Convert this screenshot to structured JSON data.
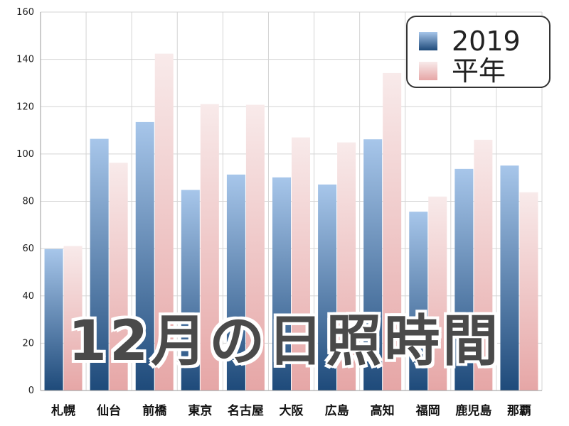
{
  "overlay_title": "12月の日照時間",
  "legend": {
    "position": "top-right",
    "items": [
      {
        "label": "2019",
        "color": "#3b6aa3"
      },
      {
        "label": "平年",
        "color": "#eec3c3"
      }
    ]
  },
  "colors": {
    "series_2019_top": "#a7c6ea",
    "series_2019_bottom": "#1e4a7a",
    "series_normal_top": "#f8eaea",
    "series_normal_bottom": "#e6a6a6",
    "gridline": "#d4d4d4"
  },
  "chart_data": {
    "type": "bar",
    "title": "",
    "xlabel": "",
    "ylabel": "",
    "ylim": [
      0,
      160
    ],
    "yticks": [
      0,
      20,
      40,
      60,
      80,
      100,
      120,
      140,
      160
    ],
    "grid": true,
    "legend_position": "top-right",
    "categories": [
      "札幌",
      "仙台",
      "前橋",
      "東京",
      "名古屋",
      "大阪",
      "広島",
      "高知",
      "福岡",
      "鹿児島",
      "那覇"
    ],
    "series": [
      {
        "name": "2019",
        "values": [
          59.8,
          106.4,
          113.5,
          84.8,
          91.3,
          90.1,
          87.1,
          106.2,
          75.6,
          93.7,
          95.1
        ]
      },
      {
        "name": "平年",
        "values": [
          61.1,
          96.3,
          142.4,
          121.1,
          120.8,
          107.0,
          104.9,
          134.2,
          82.0,
          106.0,
          83.8
        ]
      }
    ]
  }
}
